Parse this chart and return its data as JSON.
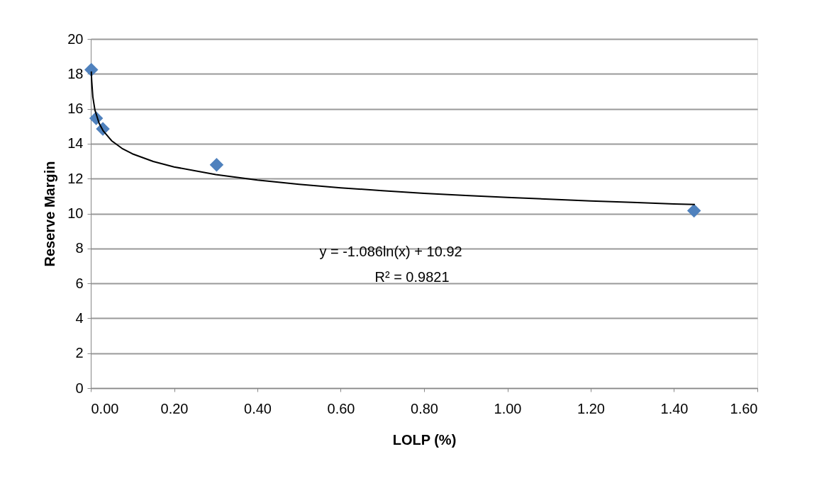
{
  "chart_data": {
    "type": "scatter",
    "xlabel": "LOLP (%)",
    "ylabel": "Reserve Margin",
    "xlim": [
      0,
      1.6
    ],
    "xticks": [
      {
        "value": 0,
        "label": "0.00"
      },
      {
        "value": 0.2,
        "label": "0.20"
      },
      {
        "value": 0.4,
        "label": "0.40"
      },
      {
        "value": 0.6,
        "label": "0.60"
      },
      {
        "value": 0.8,
        "label": "0.80"
      },
      {
        "value": 1.0,
        "label": "1.00"
      },
      {
        "value": 1.2,
        "label": "1.20"
      },
      {
        "value": 1.4,
        "label": "1.40"
      },
      {
        "value": 1.6,
        "label": "1.60"
      }
    ],
    "ylim": [
      0,
      20
    ],
    "yticks": [
      0,
      2,
      4,
      6,
      8,
      10,
      12,
      14,
      16,
      18,
      20
    ],
    "grid": "y",
    "legend": false,
    "annotations": [
      "y = -1.086ln(x) + 10.92",
      "R² = 0.9821"
    ],
    "series": [
      {
        "marker": "diamond",
        "color": "#4f81bd",
        "x": [
          0.0013,
          0.013,
          0.029,
          0.302,
          1.448
        ],
        "values": [
          18.24,
          15.46,
          14.85,
          12.79,
          10.16
        ]
      },
      {
        "type": "line",
        "marker": "none",
        "line_style": "solid",
        "color": "#000000",
        "x": [
          0.0013,
          0.002,
          0.005,
          0.01,
          0.02,
          0.03,
          0.05,
          0.075,
          0.1,
          0.15,
          0.2,
          0.3,
          0.4,
          0.5,
          0.6,
          0.7,
          0.8,
          0.9,
          1.0,
          1.1,
          1.2,
          1.3,
          1.4,
          1.45
        ],
        "values": [
          18.14,
          17.67,
          16.67,
          15.92,
          15.17,
          14.73,
          14.17,
          13.73,
          13.42,
          12.98,
          12.67,
          12.23,
          11.92,
          11.67,
          11.47,
          11.31,
          11.16,
          11.03,
          10.92,
          10.82,
          10.72,
          10.64,
          10.55,
          10.52
        ]
      }
    ]
  }
}
